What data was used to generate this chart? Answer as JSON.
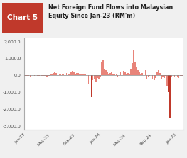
{
  "title_box": "Chart 5",
  "title_text": "Net Foreign Fund Flows into Malaysian\nEquity Since Jan-23 (RM'm)",
  "title_box_color": "#c0392b",
  "title_bg_color": "#e8e8e8",
  "bar_color": "#e8847a",
  "bar_color_dark": "#c0392b",
  "ylim": [
    -3200,
    2200
  ],
  "yticks": [
    -3000,
    -2000,
    -1000,
    0,
    1000,
    2000
  ],
  "ytick_labels": [
    "-3,000.0",
    "-2,000.0",
    "-1,000.0",
    "0.0",
    "1,000.0",
    "2,000.0"
  ],
  "xtick_labels": [
    "Jan-23",
    "May-23",
    "Sep-23",
    "Jan-24",
    "May-24",
    "Sep-24",
    "Jan-25"
  ],
  "values": [
    -20,
    -30,
    -15,
    -80,
    -10,
    -250,
    -20,
    -10,
    -30,
    -15,
    -10,
    -20,
    -40,
    -50,
    -100,
    -60,
    -20,
    30,
    80,
    120,
    200,
    150,
    80,
    100,
    50,
    60,
    80,
    150,
    120,
    80,
    100,
    200,
    250,
    180,
    100,
    150,
    130,
    100,
    80,
    60,
    80,
    50,
    -350,
    -500,
    -800,
    -1300,
    -300,
    -200,
    -400,
    -150,
    -200,
    -100,
    800,
    900,
    400,
    300,
    200,
    100,
    150,
    200,
    100,
    50,
    80,
    -100,
    -50,
    200,
    300,
    250,
    200,
    100,
    150,
    80,
    400,
    700,
    1500,
    800,
    500,
    300,
    200,
    100,
    150,
    200,
    300,
    -200,
    -100,
    -50,
    -80,
    -200,
    -300,
    -150,
    200,
    300,
    150,
    -200,
    -100,
    -150,
    -50,
    -600,
    -1000,
    -2500,
    -100,
    -50,
    -80,
    -30,
    -100,
    -150,
    -50,
    -30
  ]
}
